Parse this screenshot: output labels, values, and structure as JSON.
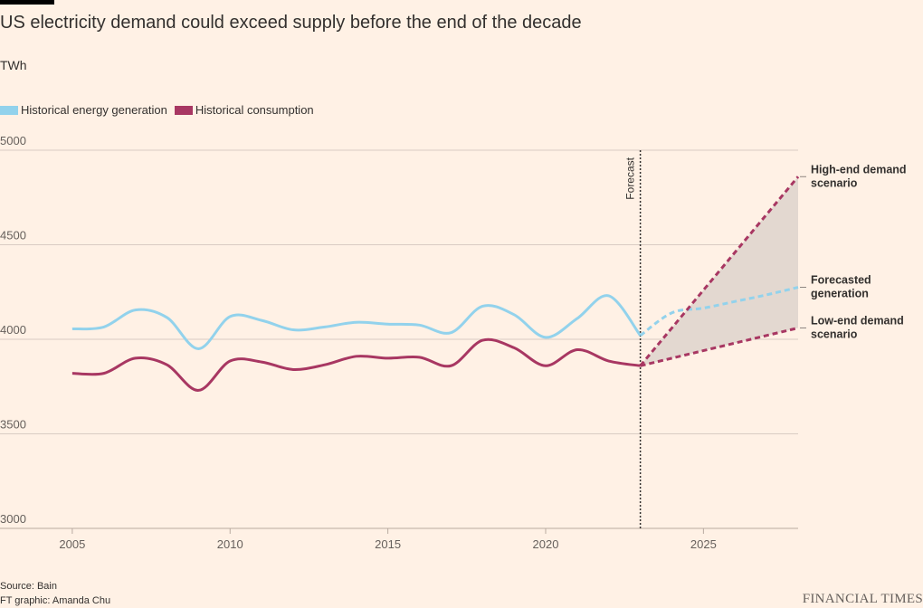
{
  "title": "US electricity demand could exceed supply before the end of the decade",
  "unit": "TWh",
  "legend": [
    {
      "label": "Historical energy generation",
      "color": "#92D2EC"
    },
    {
      "label": "Historical consumption",
      "color": "#A83762"
    }
  ],
  "source": "Source: Bain",
  "credit": "FT graphic: Amanda Chu",
  "brand": "FINANCIAL TIMES",
  "forecast_label": "Forecast",
  "colors": {
    "generation": "#92D2EC",
    "consumption": "#A83762",
    "band": "#E3D8D0",
    "grid": "#D9CCC3",
    "axis_text": "#66605C"
  },
  "chart_data": {
    "type": "line",
    "x_range": [
      2004,
      2028
    ],
    "ylim": [
      3000,
      5000
    ],
    "y_ticks": [
      3000,
      3500,
      4000,
      4500,
      5000
    ],
    "x_ticks": [
      2005,
      2010,
      2015,
      2020,
      2025
    ],
    "forecast_start": 2023,
    "series": [
      {
        "name": "Historical energy generation",
        "style": "solid",
        "x": [
          2005,
          2006,
          2007,
          2008,
          2009,
          2010,
          2011,
          2012,
          2013,
          2014,
          2015,
          2016,
          2017,
          2018,
          2019,
          2020,
          2021,
          2022,
          2023
        ],
        "y": [
          4055,
          4065,
          4155,
          4115,
          3950,
          4120,
          4100,
          4050,
          4065,
          4090,
          4080,
          4075,
          4035,
          4175,
          4130,
          4010,
          4110,
          4230,
          4020
        ]
      },
      {
        "name": "Historical consumption",
        "style": "solid",
        "x": [
          2005,
          2006,
          2007,
          2008,
          2009,
          2010,
          2011,
          2012,
          2013,
          2014,
          2015,
          2016,
          2017,
          2018,
          2019,
          2020,
          2021,
          2022,
          2023
        ],
        "y": [
          3820,
          3820,
          3900,
          3865,
          3730,
          3885,
          3880,
          3840,
          3865,
          3910,
          3900,
          3905,
          3860,
          3995,
          3955,
          3860,
          3945,
          3885,
          3860
        ]
      },
      {
        "name": "Forecasted generation",
        "style": "dashed",
        "x": [
          2023,
          2024,
          2025,
          2026,
          2027,
          2028
        ],
        "y": [
          4020,
          4140,
          4165,
          4200,
          4235,
          4275
        ]
      },
      {
        "name": "High-end demand scenario",
        "style": "dashed",
        "x": [
          2023,
          2028
        ],
        "y": [
          3860,
          4860
        ]
      },
      {
        "name": "Low-end demand scenario",
        "style": "dashed",
        "x": [
          2023,
          2028
        ],
        "y": [
          3860,
          4060
        ]
      }
    ],
    "annotations": [
      {
        "lines": [
          "High-end demand",
          "scenario"
        ],
        "y": 4860
      },
      {
        "lines": [
          "Forecasted",
          "generation"
        ],
        "y": 4275
      },
      {
        "lines": [
          "Low-end demand",
          "scenario"
        ],
        "y": 4060
      }
    ]
  }
}
